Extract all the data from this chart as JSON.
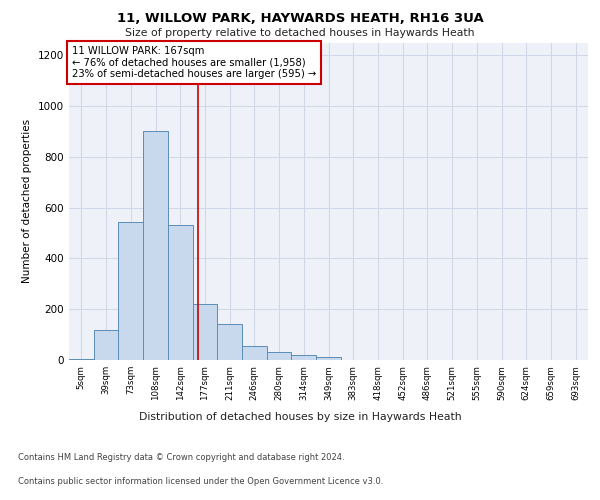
{
  "title1": "11, WILLOW PARK, HAYWARDS HEATH, RH16 3UA",
  "title2": "Size of property relative to detached houses in Haywards Heath",
  "xlabel": "Distribution of detached houses by size in Haywards Heath",
  "ylabel": "Number of detached properties",
  "footer1": "Contains HM Land Registry data © Crown copyright and database right 2024.",
  "footer2": "Contains public sector information licensed under the Open Government Licence v3.0.",
  "categories": [
    "5sqm",
    "39sqm",
    "73sqm",
    "108sqm",
    "142sqm",
    "177sqm",
    "211sqm",
    "246sqm",
    "280sqm",
    "314sqm",
    "349sqm",
    "383sqm",
    "418sqm",
    "452sqm",
    "486sqm",
    "521sqm",
    "555sqm",
    "590sqm",
    "624sqm",
    "659sqm",
    "693sqm"
  ],
  "values": [
    5,
    120,
    545,
    900,
    530,
    220,
    140,
    55,
    30,
    20,
    10,
    0,
    0,
    0,
    0,
    0,
    0,
    0,
    0,
    0,
    0
  ],
  "bar_color": "#c9d9ed",
  "bar_edge_color": "#5b8db8",
  "ylim": [
    0,
    1250
  ],
  "yticks": [
    0,
    200,
    400,
    600,
    800,
    1000,
    1200
  ],
  "annotation_line1": "11 WILLOW PARK: 167sqm",
  "annotation_line2": "← 76% of detached houses are smaller (1,958)",
  "annotation_line3": "23% of semi-detached houses are larger (595) →",
  "annotation_box_color": "#ffffff",
  "annotation_box_edge": "#cc0000",
  "vline_color": "#cc0000",
  "grid_color": "#d0d8e8",
  "background_color": "#eef2f8"
}
